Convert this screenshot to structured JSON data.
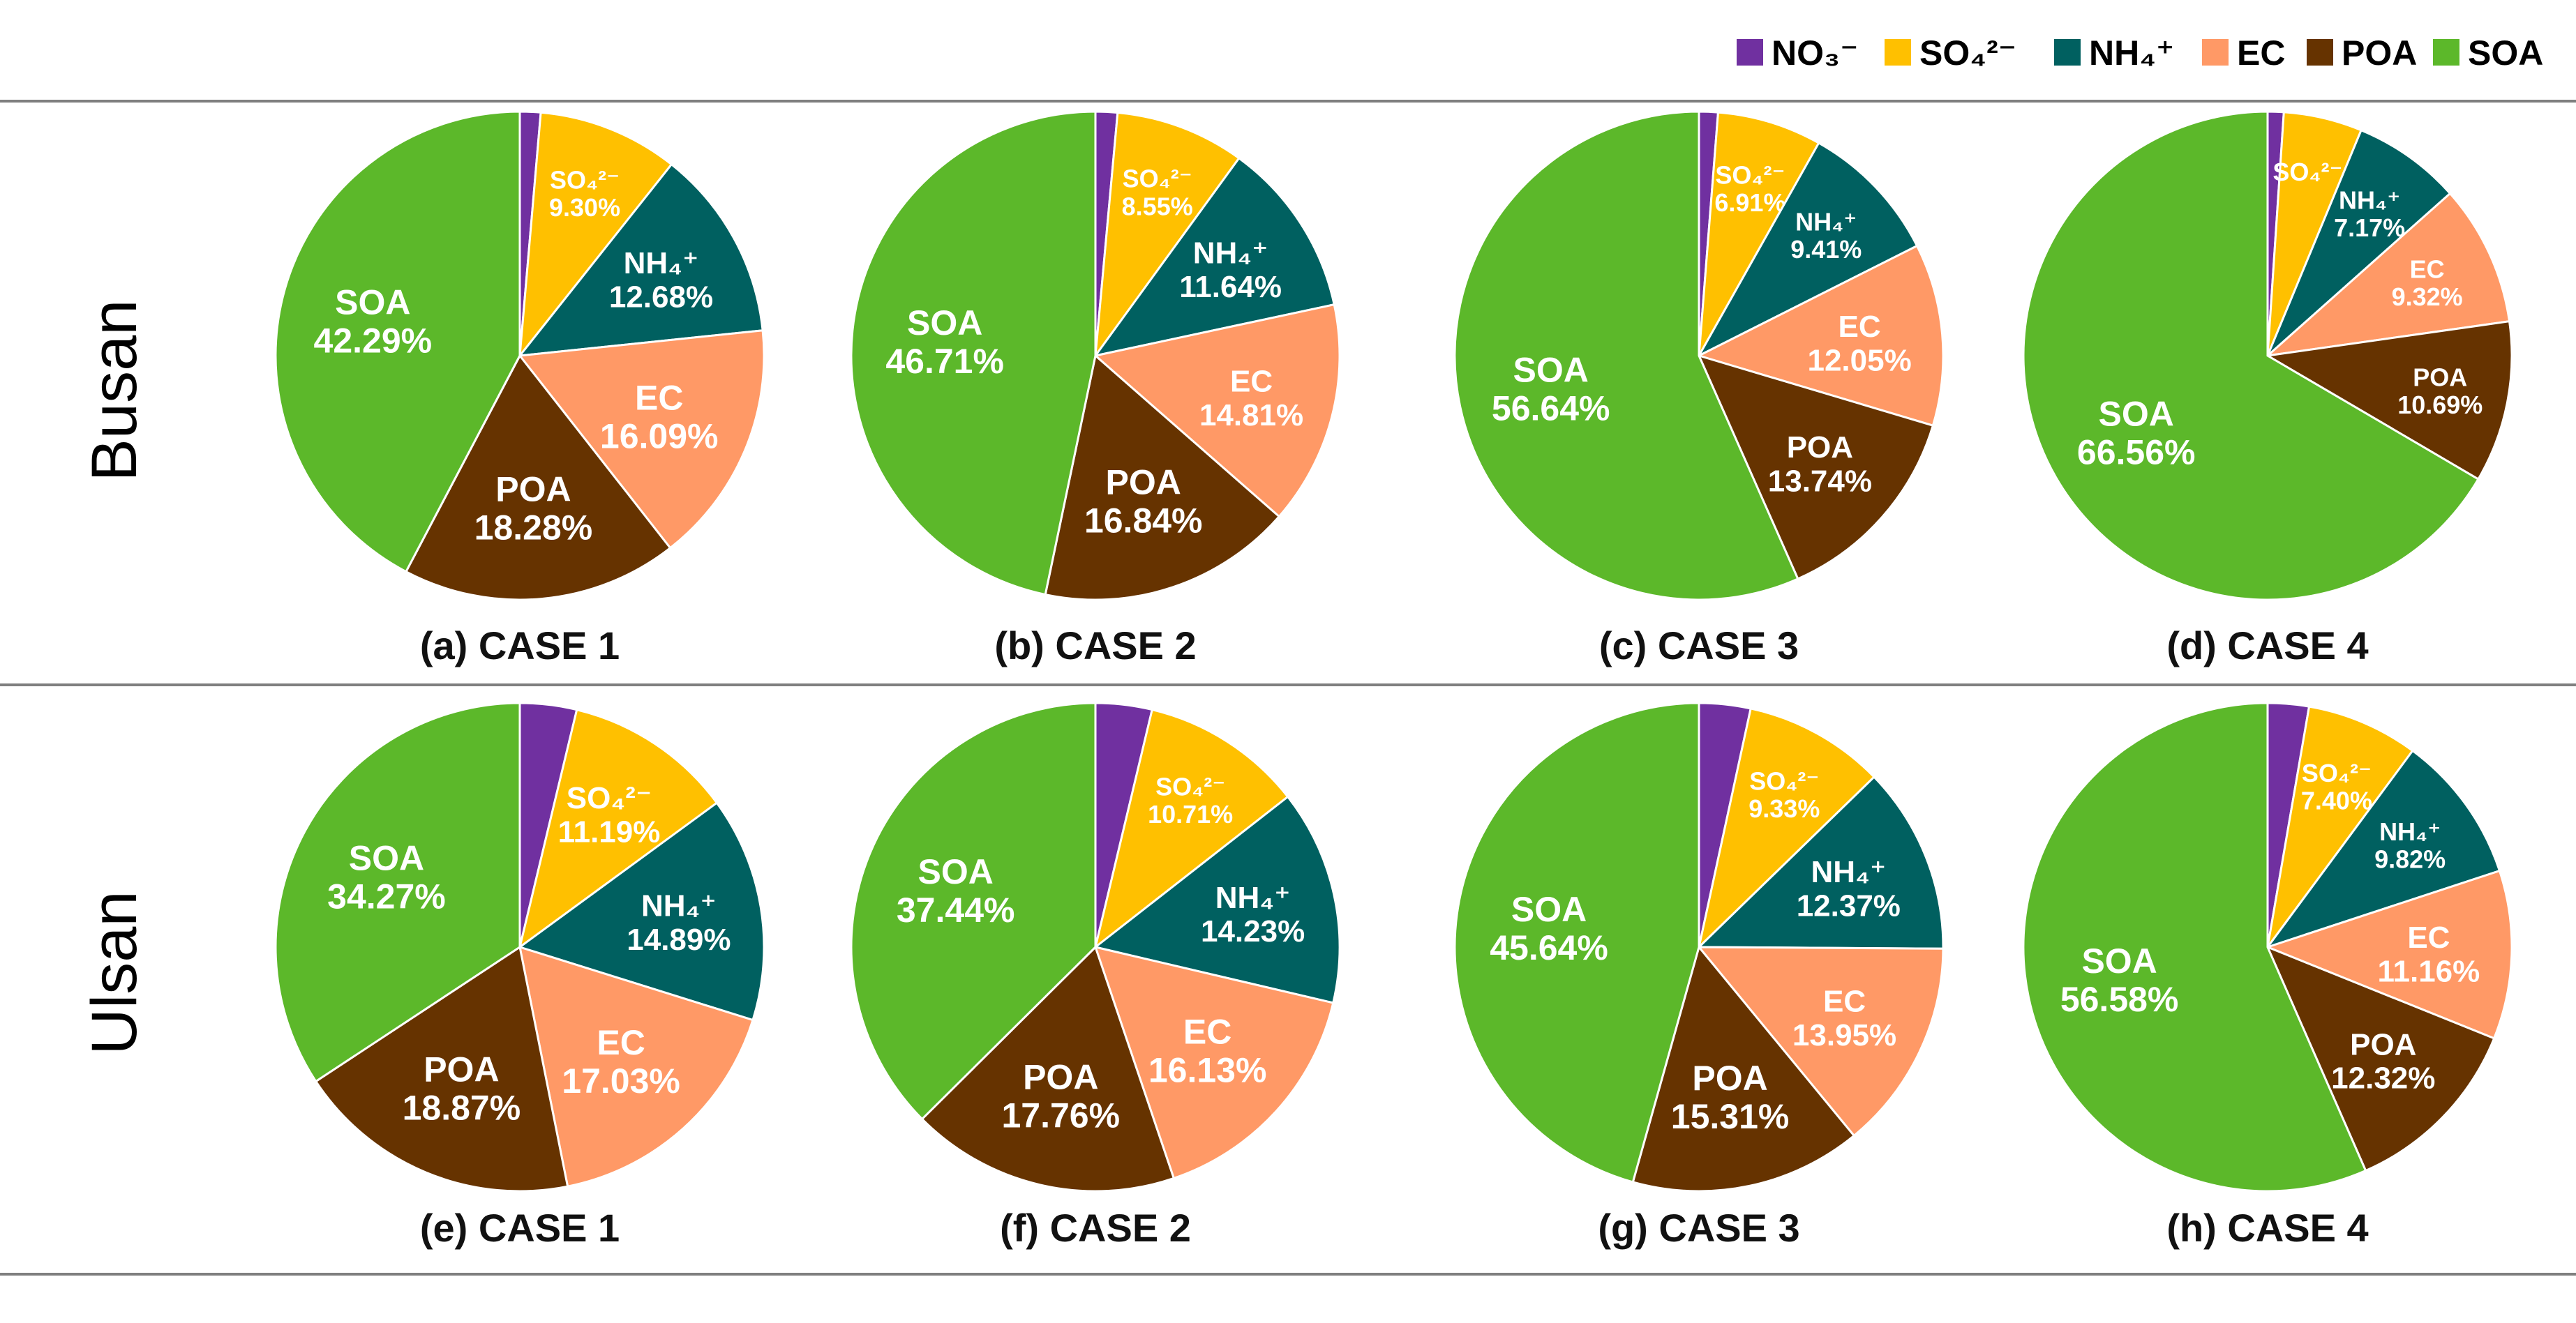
{
  "chart_data": [
    {
      "type": "pie",
      "group": "Busan",
      "title": "(a) CASE 1",
      "slices": [
        {
          "name": "NO3-",
          "value": 1.37
        },
        {
          "name": "SO4 2-",
          "value": 9.3,
          "label": "SO₄²⁻",
          "pct": "9.30%"
        },
        {
          "name": "NH4+",
          "value": 12.68,
          "label": "NH₄⁺",
          "pct": "12.68%"
        },
        {
          "name": "EC",
          "value": 16.09,
          "label": "EC",
          "pct": "16.09%"
        },
        {
          "name": "POA",
          "value": 18.28,
          "label": "POA",
          "pct": "18.28%"
        },
        {
          "name": "SOA",
          "value": 42.29,
          "label": "SOA",
          "pct": "42.29%"
        }
      ]
    },
    {
      "type": "pie",
      "group": "Busan",
      "title": "(b) CASE 2",
      "slices": [
        {
          "name": "NO3-",
          "value": 1.45
        },
        {
          "name": "SO4 2-",
          "value": 8.55,
          "label": "SO₄²⁻",
          "pct": "8.55%"
        },
        {
          "name": "NH4+",
          "value": 11.64,
          "label": "NH₄⁺",
          "pct": "11.64%"
        },
        {
          "name": "EC",
          "value": 14.81,
          "label": "EC",
          "pct": "14.81%"
        },
        {
          "name": "POA",
          "value": 16.84,
          "label": "POA",
          "pct": "16.84%"
        },
        {
          "name": "SOA",
          "value": 46.71,
          "label": "SOA",
          "pct": "46.71%"
        }
      ]
    },
    {
      "type": "pie",
      "group": "Busan",
      "title": "(c) CASE 3",
      "slices": [
        {
          "name": "NO3-",
          "value": 1.25
        },
        {
          "name": "SO4 2-",
          "value": 6.91,
          "label": "SO₄²⁻",
          "pct": "6.91%"
        },
        {
          "name": "NH4+",
          "value": 9.41,
          "label": "NH₄⁺",
          "pct": "9.41%"
        },
        {
          "name": "EC",
          "value": 12.05,
          "label": "EC",
          "pct": "12.05%"
        },
        {
          "name": "POA",
          "value": 13.74,
          "label": "POA",
          "pct": "13.74%"
        },
        {
          "name": "SOA",
          "value": 56.64,
          "label": "SOA",
          "pct": "56.64%"
        }
      ]
    },
    {
      "type": "pie",
      "group": "Busan",
      "title": "(d) CASE 4",
      "slices": [
        {
          "name": "NO3-",
          "value": 1.06
        },
        {
          "name": "SO4 2-",
          "value": 5.2,
          "label": "SO₄²⁻",
          "pct": ""
        },
        {
          "name": "NH4+",
          "value": 7.17,
          "label": "NH₄⁺",
          "pct": "7.17%"
        },
        {
          "name": "EC",
          "value": 9.32,
          "label": "EC",
          "pct": "9.32%"
        },
        {
          "name": "POA",
          "value": 10.69,
          "label": "POA",
          "pct": "10.69%"
        },
        {
          "name": "SOA",
          "value": 66.56,
          "label": "SOA",
          "pct": "66.56%"
        }
      ]
    },
    {
      "type": "pie",
      "group": "Ulsan",
      "title": "(e) CASE 1",
      "slices": [
        {
          "name": "NO3-",
          "value": 3.75
        },
        {
          "name": "SO4 2-",
          "value": 11.19,
          "label": "SO₄²⁻",
          "pct": "11.19%"
        },
        {
          "name": "NH4+",
          "value": 14.89,
          "label": "NH₄⁺",
          "pct": "14.89%"
        },
        {
          "name": "EC",
          "value": 17.03,
          "label": "EC",
          "pct": "17.03%"
        },
        {
          "name": "POA",
          "value": 18.87,
          "label": "POA",
          "pct": "18.87%"
        },
        {
          "name": "SOA",
          "value": 34.27,
          "label": "SOA",
          "pct": "34.27%"
        }
      ]
    },
    {
      "type": "pie",
      "group": "Ulsan",
      "title": "(f) CASE 2",
      "slices": [
        {
          "name": "NO3-",
          "value": 3.73
        },
        {
          "name": "SO4 2-",
          "value": 10.71,
          "label": "SO₄²⁻",
          "pct": "10.71%"
        },
        {
          "name": "NH4+",
          "value": 14.23,
          "label": "NH₄⁺",
          "pct": "14.23%"
        },
        {
          "name": "EC",
          "value": 16.13,
          "label": "EC",
          "pct": "16.13%"
        },
        {
          "name": "POA",
          "value": 17.76,
          "label": "POA",
          "pct": "17.76%"
        },
        {
          "name": "SOA",
          "value": 37.44,
          "label": "SOA",
          "pct": "37.44%"
        }
      ]
    },
    {
      "type": "pie",
      "group": "Ulsan",
      "title": "(g) CASE 3",
      "slices": [
        {
          "name": "NO3-",
          "value": 3.4
        },
        {
          "name": "SO4 2-",
          "value": 9.33,
          "label": "SO₄²⁻",
          "pct": "9.33%"
        },
        {
          "name": "NH4+",
          "value": 12.37,
          "label": "NH₄⁺",
          "pct": "12.37%"
        },
        {
          "name": "EC",
          "value": 13.95,
          "label": "EC",
          "pct": "13.95%"
        },
        {
          "name": "POA",
          "value": 15.31,
          "label": "POA",
          "pct": "15.31%"
        },
        {
          "name": "SOA",
          "value": 45.64,
          "label": "SOA",
          "pct": "45.64%"
        }
      ]
    },
    {
      "type": "pie",
      "group": "Ulsan",
      "title": "(h) CASE 4",
      "slices": [
        {
          "name": "NO3-",
          "value": 2.72
        },
        {
          "name": "SO4 2-",
          "value": 7.4,
          "label": "SO₄²⁻",
          "pct": "7.40%"
        },
        {
          "name": "NH4+",
          "value": 9.82,
          "label": "NH₄⁺",
          "pct": "9.82%"
        },
        {
          "name": "EC",
          "value": 11.16,
          "label": "EC",
          "pct": "11.16%"
        },
        {
          "name": "POA",
          "value": 12.32,
          "label": "POA",
          "pct": "12.32%"
        },
        {
          "name": "SOA",
          "value": 56.58,
          "label": "SOA",
          "pct": "56.58%"
        }
      ]
    }
  ],
  "rows": [
    "Busan",
    "Ulsan"
  ],
  "legend": [
    {
      "key": "NO3-",
      "label": "NO₃⁻",
      "color": "#7030a0"
    },
    {
      "key": "SO4 2-",
      "label": "SO₄²⁻",
      "color": "#ffc000"
    },
    {
      "key": "NH4+",
      "label": "NH₄⁺",
      "color": "#006060"
    },
    {
      "key": "EC",
      "label": "EC",
      "color": "#ff9966"
    },
    {
      "key": "POA",
      "label": "POA",
      "color": "#663300"
    },
    {
      "key": "SOA",
      "label": "SOA",
      "color": "#5cb82a"
    }
  ]
}
